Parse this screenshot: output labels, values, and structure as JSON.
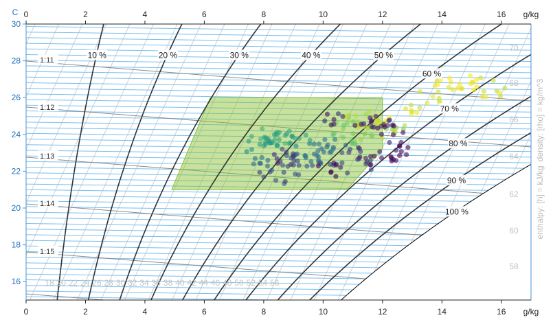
{
  "chart_data": {
    "type": "psychrometric",
    "x_axis": {
      "unit": "g/kg",
      "range": [
        0,
        17
      ],
      "ticks": [
        0,
        2,
        4,
        6,
        8,
        10,
        12,
        14,
        16
      ]
    },
    "y_axis": {
      "unit": "C",
      "range": [
        15,
        30
      ],
      "ticks": [
        16,
        18,
        20,
        22,
        24,
        26,
        28,
        30
      ]
    },
    "rh_curves": [
      {
        "rh": 10,
        "label": "10 %"
      },
      {
        "rh": 20,
        "label": "20 %"
      },
      {
        "rh": 30,
        "label": "30 %"
      },
      {
        "rh": 40,
        "label": "40 %"
      },
      {
        "rh": 50,
        "label": "50 %"
      },
      {
        "rh": 60,
        "label": "60 %"
      },
      {
        "rh": 70,
        "label": "70 %"
      },
      {
        "rh": 80,
        "label": "80 %"
      },
      {
        "rh": 90,
        "label": "90 %"
      },
      {
        "rh": 100,
        "label": "100 %"
      }
    ],
    "density_lines": [
      {
        "value": 1.11,
        "label": "1:11"
      },
      {
        "value": 1.12,
        "label": "1:12"
      },
      {
        "value": 1.13,
        "label": "1:13"
      },
      {
        "value": 1.14,
        "label": "1:14"
      },
      {
        "value": 1.15,
        "label": "1:15"
      }
    ],
    "enthalpy_labels_bottom": [
      "18",
      "20",
      "22",
      "24",
      "26",
      "28",
      "30",
      "32",
      "34",
      "36",
      "38",
      "40",
      "42",
      "44",
      "46",
      "48",
      "50",
      "52",
      "54",
      "56"
    ],
    "enthalpy_labels_right": [
      "58",
      "60",
      "62",
      "64",
      "66",
      "68",
      "70"
    ],
    "side_labels": {
      "density": "density: [rho] = kg/m^3",
      "enthalpy": "enthalpy: [h] = kJ/kg"
    },
    "comfort_zone": {
      "polygon_x_gkg": [
        6.2,
        12.0,
        12.0,
        10.8,
        4.9,
        6.2
      ],
      "polygon_y_C": [
        26,
        26,
        23.2,
        21,
        21,
        26
      ]
    },
    "scatter": [
      [
        9.0,
        22.9,
        0.21
      ],
      [
        10.2,
        22.5,
        0.25
      ],
      [
        9.5,
        22.6,
        0.3
      ],
      [
        8.3,
        23.6,
        0.57
      ],
      [
        8.5,
        23.7,
        0.62
      ],
      [
        9.4,
        23.2,
        0.43
      ],
      [
        8.8,
        22.7,
        0.14
      ],
      [
        10.4,
        23.4,
        0.36
      ],
      [
        9.9,
        23.1,
        0.35
      ],
      [
        8.0,
        24.0,
        0.62
      ],
      [
        8.6,
        23.8,
        0.58
      ],
      [
        9.2,
        24.0,
        0.57
      ],
      [
        7.8,
        23.3,
        0.53
      ],
      [
        10.6,
        24.6,
        0.8
      ],
      [
        11.3,
        24.0,
        0.85
      ],
      [
        11.6,
        24.6,
        0.9
      ],
      [
        12.3,
        24.2,
        0.86
      ],
      [
        12.2,
        24.9,
        0.95
      ],
      [
        13.0,
        25.3,
        0.96
      ],
      [
        13.7,
        26.1,
        0.97
      ],
      [
        14.6,
        26.6,
        0.97
      ],
      [
        15.4,
        26.8,
        0.98
      ],
      [
        14.2,
        26.9,
        1.0
      ],
      [
        15.7,
        26.2,
        0.95
      ],
      [
        12.4,
        23.3,
        0.05
      ],
      [
        12.6,
        22.9,
        0.02
      ],
      [
        11.6,
        22.7,
        0.1
      ],
      [
        11.0,
        22.9,
        0.18
      ],
      [
        10.7,
        23.8,
        0.75
      ],
      [
        11.2,
        25.2,
        0.88
      ],
      [
        12.0,
        24.5,
        0.9
      ],
      [
        10.2,
        22.1,
        0.04
      ],
      [
        9.0,
        22.1,
        0.2
      ],
      [
        8.3,
        21.7,
        0.24
      ],
      [
        7.9,
        22.6,
        0.36
      ],
      [
        11.8,
        24.8,
        0.12
      ],
      [
        10.5,
        24.8,
        0.1
      ],
      [
        11.5,
        24.4,
        0.08
      ],
      [
        12.4,
        24.2,
        0.02
      ],
      [
        11.2,
        22.3,
        0.18
      ]
    ]
  }
}
